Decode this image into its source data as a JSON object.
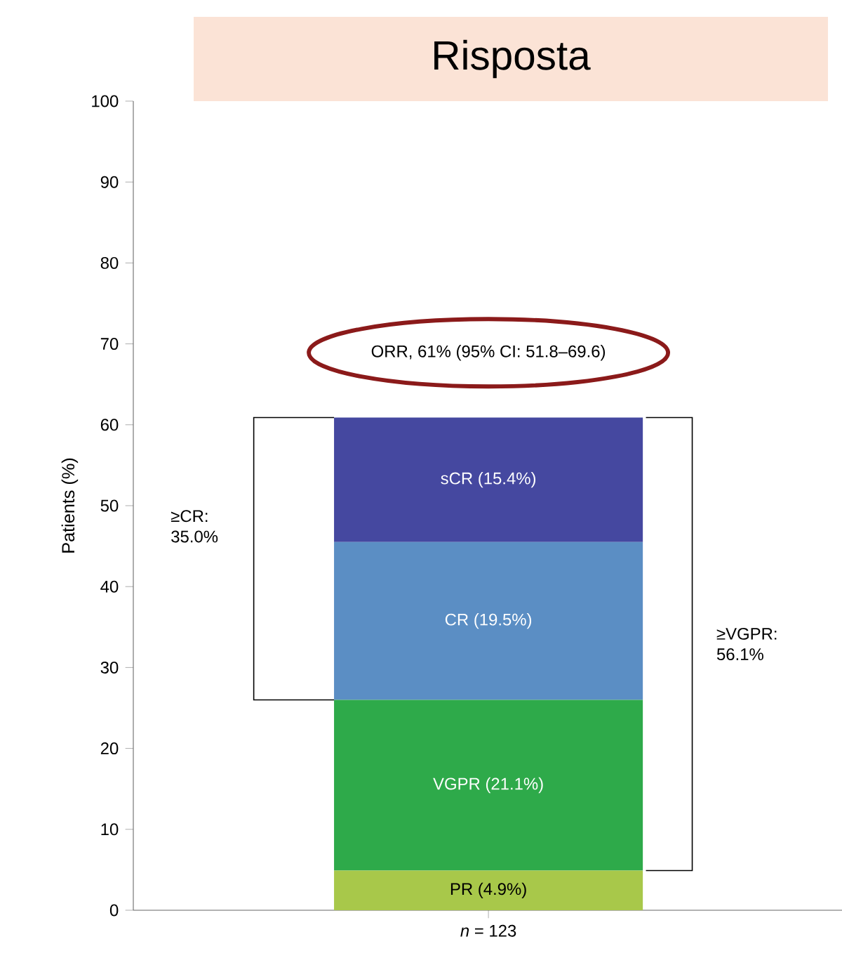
{
  "chart_data": {
    "type": "bar",
    "stacked": true,
    "title": "Risposta",
    "ylabel": "Patients (%)",
    "categories": [
      "*n* = 123"
    ],
    "series": [
      {
        "color": "#a8c84a",
        "values": [
          4.9
        ],
        "value_labels": [
          "PR (4.9%)"
        ]
      },
      {
        "color": "#2eaa4a",
        "values": [
          21.1
        ],
        "value_labels": [
          "VGPR (21.1%)"
        ]
      },
      {
        "color": "#5b8ec4",
        "values": [
          19.5
        ],
        "value_labels": [
          "CR (19.5%)"
        ]
      },
      {
        "color": "#4548a0",
        "values": [
          15.4
        ],
        "value_labels": [
          "sCR (15.4%)"
        ]
      }
    ],
    "ylim": [
      0,
      100
    ],
    "yticks": [
      0,
      10,
      20,
      30,
      40,
      50,
      60,
      70,
      80,
      90,
      100
    ],
    "annotations": [
      "ORR, 61% (95% CI: 51.8–69.6)",
      "≥CR: 35.0%",
      "≥VGPR: 56.1%"
    ]
  }
}
